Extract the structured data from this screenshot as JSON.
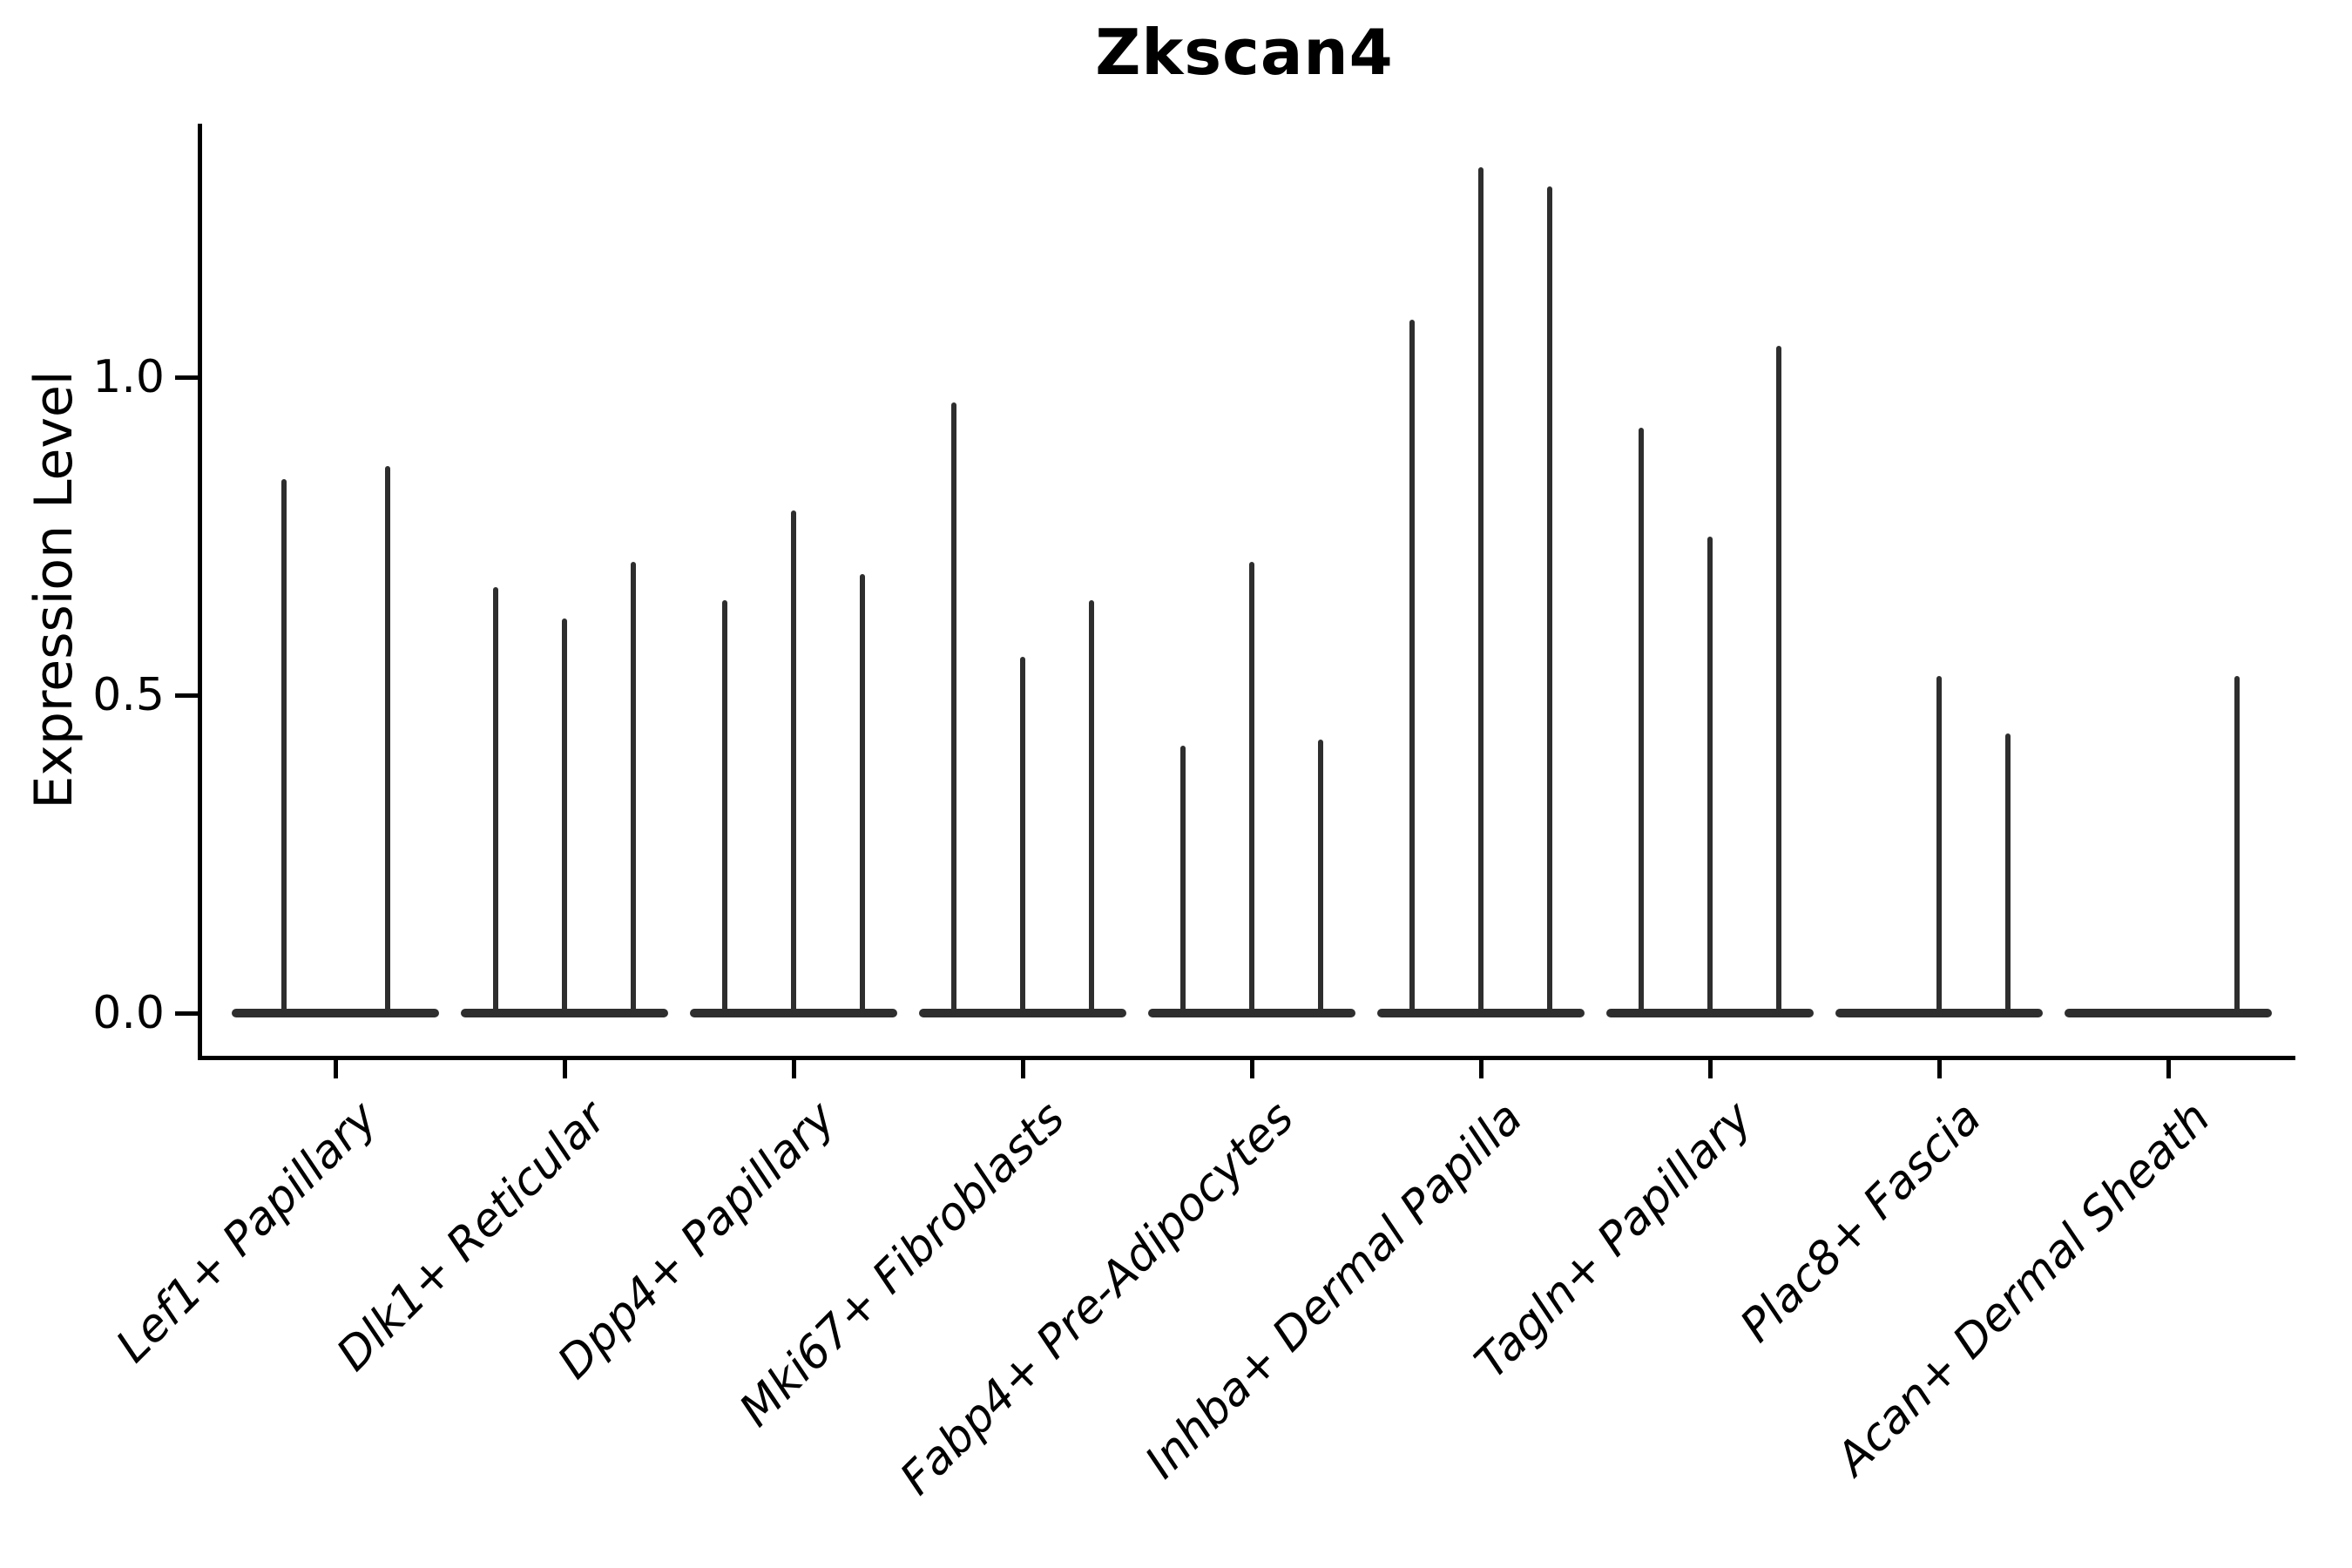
{
  "figure": {
    "title": "Zkscan4",
    "ylabel": "Expression Level"
  },
  "style": {
    "violin_color": "#2e2e2e",
    "axis_color": "#000000",
    "background": "#ffffff"
  },
  "chart_data": {
    "type": "violin",
    "title": "Zkscan4",
    "xlabel": "",
    "ylabel": "Expression Level",
    "ylim": [
      -0.07,
      1.4
    ],
    "ytick_labels": [
      "0.0",
      "0.5",
      "1.0"
    ],
    "ytick_values": [
      0.0,
      0.5,
      1.0
    ],
    "grid": false,
    "legend": "none",
    "x_axis_note": "9 cell-type categories, each containing 2-3 narrow violins; violins are flat at expression 0 with a thin spike up to the max expression value; spikes of value 0 mean a fully flat violin",
    "categories": [
      "Lef1+ Papillary",
      "Dlk1+ Reticular",
      "Dpp4+ Papillary",
      "Mki67+ Fibroblasts",
      "Fabp4+ Pre-Adipocytes",
      "Inhba+ Dermal Papilla",
      "Tagln+ Papillary",
      "Plac8+ Fascia",
      "Acan+ Dermal Sheath"
    ],
    "groups": [
      {
        "category": "Lef1+ Papillary",
        "violin_max_expression": [
          0.84,
          0.86
        ]
      },
      {
        "category": "Dlk1+ Reticular",
        "violin_max_expression": [
          0.67,
          0.62,
          0.71
        ]
      },
      {
        "category": "Dpp4+ Papillary",
        "violin_max_expression": [
          0.65,
          0.79,
          0.69
        ]
      },
      {
        "category": "Mki67+ Fibroblasts",
        "violin_max_expression": [
          0.96,
          0.56,
          0.65
        ]
      },
      {
        "category": "Fabp4+ Pre-Adipocytes",
        "violin_max_expression": [
          0.42,
          0.71,
          0.43
        ]
      },
      {
        "category": "Inhba+ Dermal Papilla",
        "violin_max_expression": [
          1.09,
          1.33,
          1.3
        ]
      },
      {
        "category": "Tagln+ Papillary",
        "violin_max_expression": [
          0.92,
          0.75,
          1.05
        ]
      },
      {
        "category": "Plac8+ Fascia",
        "violin_max_expression": [
          0.0,
          0.53,
          0.44
        ]
      },
      {
        "category": "Acan+ Dermal Sheath",
        "violin_max_expression": [
          0.0,
          0.0,
          0.53
        ]
      }
    ]
  }
}
